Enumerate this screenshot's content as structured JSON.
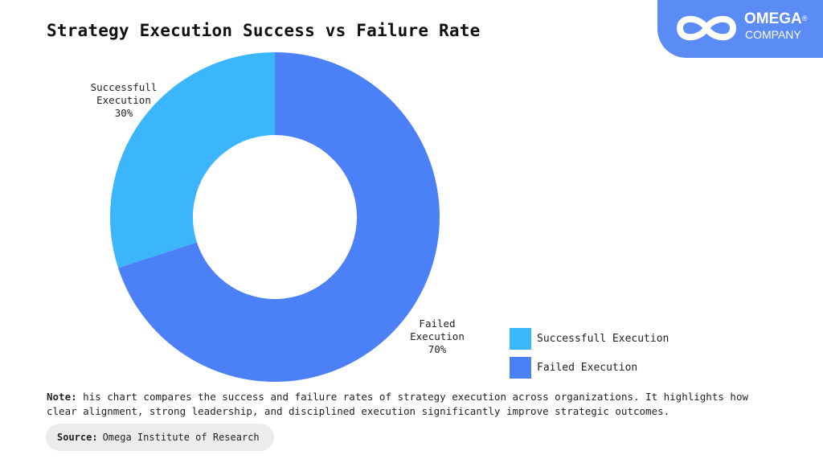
{
  "title": "Strategy Execution Success vs Failure Rate",
  "logo": {
    "name": "OMEGA",
    "mark": "®",
    "sub": "COMPANY"
  },
  "chart_data": {
    "type": "pie",
    "title": "Strategy Execution Success vs Failure Rate",
    "donut": true,
    "slices": [
      {
        "label_line1": "Successfull",
        "label_line2": "Execution",
        "legend": "Successfull Execution",
        "value": 30,
        "value_label": "30%",
        "color": "#3bb6fc"
      },
      {
        "label_line1": "Failed",
        "label_line2": "Execution",
        "legend": "Failed Execution",
        "value": 70,
        "value_label": "70%",
        "color": "#4b80f7"
      }
    ],
    "legend_placement": "bottom-right"
  },
  "note": {
    "label": "Note:",
    "text": "his chart compares the success and failure rates of strategy execution across organizations. It highlights how clear alignment, strong leadership, and disciplined execution significantly improve strategic outcomes."
  },
  "source": {
    "label": "Source:",
    "text": "Omega Institute of Research"
  }
}
